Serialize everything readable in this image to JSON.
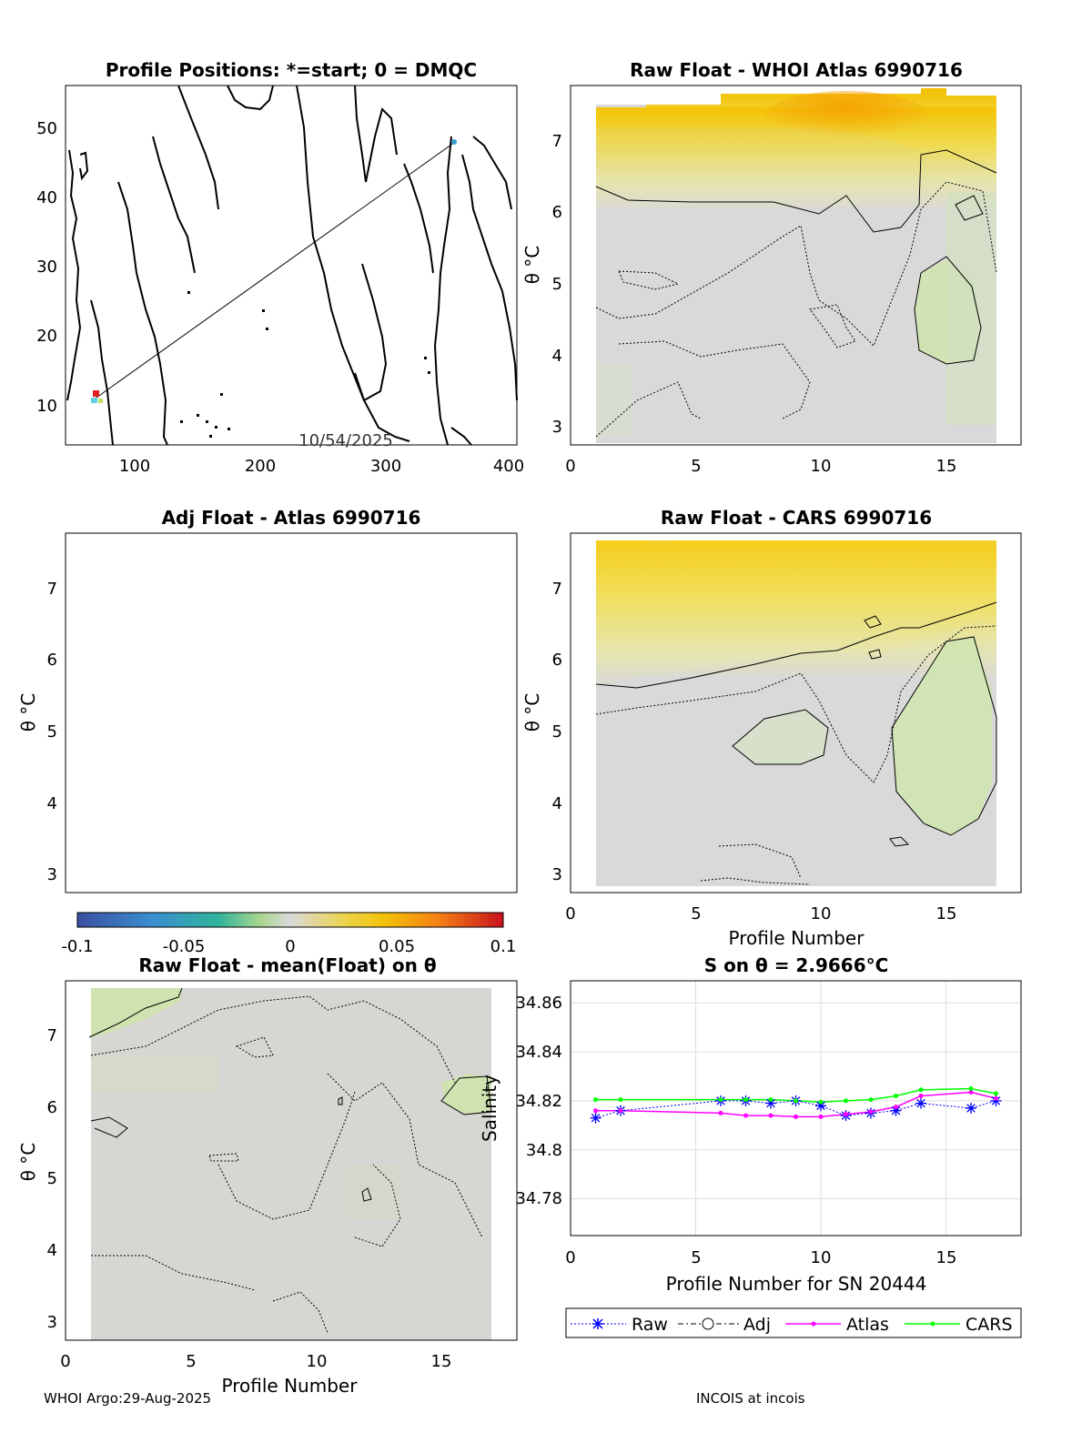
{
  "panels": {
    "map": {
      "title": "Profile Positions: *=start; 0 = DMQC",
      "date_label": "10/54/2025",
      "xticks": [
        "100",
        "200",
        "300",
        "400"
      ],
      "yticks": [
        "10",
        "20",
        "30",
        "40",
        "50"
      ]
    },
    "whoi": {
      "title": "Raw Float - WHOI Atlas  6990716",
      "xticks": [
        "0",
        "5",
        "10",
        "15"
      ],
      "yticks": [
        "3",
        "4",
        "5",
        "6",
        "7"
      ],
      "ylabel": "θ °C"
    },
    "adj": {
      "title": "Adj Float - Atlas  6990716",
      "yticks": [
        "3",
        "4",
        "5",
        "6",
        "7"
      ],
      "ylabel": "θ °C"
    },
    "cars": {
      "title": "Raw Float - CARS  6990716",
      "xticks": [
        "0",
        "5",
        "10",
        "15"
      ],
      "yticks": [
        "3",
        "4",
        "5",
        "6",
        "7"
      ],
      "ylabel": "θ °C",
      "xlabel": "Profile Number"
    },
    "mean": {
      "title": "Raw Float - mean(Float) on θ",
      "xticks": [
        "0",
        "5",
        "10",
        "15"
      ],
      "yticks": [
        "3",
        "4",
        "5",
        "6",
        "7"
      ],
      "ylabel": "θ °C",
      "xlabel": "Profile Number"
    },
    "salinity": {
      "title": "S on θ = 2.9666°C",
      "xticks": [
        "0",
        "5",
        "10",
        "15"
      ],
      "yticks": [
        "34.78",
        "34.8",
        "34.82",
        "34.84",
        "34.86"
      ],
      "ylabel": "Salinity",
      "xlabel": "Profile Number for SN 20444"
    }
  },
  "colorbar": {
    "ticks": [
      "-0.1",
      "-0.05",
      "0",
      "0.05",
      "0.1"
    ],
    "min": -0.1,
    "max": 0.1
  },
  "legend": {
    "raw": "Raw",
    "adj": "Adj",
    "atlas": "Atlas",
    "cars": "CARS"
  },
  "footer": {
    "left": "WHOI Argo:29-Aug-2025",
    "right": "INCOIS at incois"
  },
  "colors": {
    "raw": "#0000ff",
    "atlas": "#ff00ff",
    "cars": "#00ff00",
    "grid": "#dddddd"
  },
  "chart_data": [
    {
      "type": "scatter",
      "title": "Profile Positions: *=start; 0 = DMQC",
      "xlim": [
        45,
        405
      ],
      "ylim": [
        4,
        56
      ],
      "track": {
        "x": [
          67,
          357
        ],
        "y": [
          10.5,
          48
        ]
      }
    },
    {
      "type": "heatmap",
      "title": "Raw Float - WHOI Atlas  6990716",
      "xlim": [
        0,
        18
      ],
      "ylim": [
        2.75,
        7.75
      ],
      "ylabel": "θ °C"
    },
    {
      "type": "heatmap",
      "title": "Adj Float - Atlas  6990716",
      "ylim": [
        2.75,
        7.75
      ],
      "ylabel": "θ °C"
    },
    {
      "type": "heatmap",
      "title": "Raw Float - CARS  6990716",
      "xlim": [
        0,
        18
      ],
      "ylim": [
        2.75,
        7.75
      ],
      "xlabel": "Profile Number",
      "ylabel": "θ °C"
    },
    {
      "type": "heatmap",
      "title": "Raw Float - mean(Float) on θ",
      "xlim": [
        0,
        18
      ],
      "ylim": [
        2.75,
        7.75
      ],
      "xlabel": "Profile Number",
      "ylabel": "θ °C"
    },
    {
      "type": "line",
      "title": "S on θ = 2.9666°C",
      "xlabel": "Profile Number for SN 20444",
      "ylabel": "Salinity",
      "xlim": [
        0,
        18
      ],
      "ylim": [
        34.765,
        34.869
      ],
      "grid": true,
      "legend_position": "bottom",
      "series": [
        {
          "name": "Raw",
          "x": [
            1,
            2,
            6,
            7,
            8,
            9,
            10,
            11,
            12,
            13,
            14,
            16,
            17
          ],
          "values": [
            34.813,
            34.816,
            34.82,
            34.82,
            34.819,
            34.82,
            34.818,
            34.814,
            34.815,
            34.816,
            34.819,
            34.817,
            34.82
          ]
        },
        {
          "name": "Atlas",
          "x": [
            1,
            2,
            6,
            7,
            8,
            9,
            10,
            11,
            12,
            13,
            14,
            16,
            17
          ],
          "values": [
            34.816,
            34.816,
            34.815,
            34.814,
            34.814,
            34.8135,
            34.8135,
            34.8145,
            34.8155,
            34.8175,
            34.822,
            34.8235,
            34.821
          ]
        },
        {
          "name": "CARS",
          "x": [
            1,
            2,
            6,
            7,
            8,
            9,
            10,
            11,
            12,
            13,
            14,
            16,
            17
          ],
          "values": [
            34.8205,
            34.8205,
            34.8205,
            34.8205,
            34.8205,
            34.82,
            34.8195,
            34.82,
            34.8205,
            34.822,
            34.8245,
            34.825,
            34.823
          ]
        }
      ]
    }
  ]
}
